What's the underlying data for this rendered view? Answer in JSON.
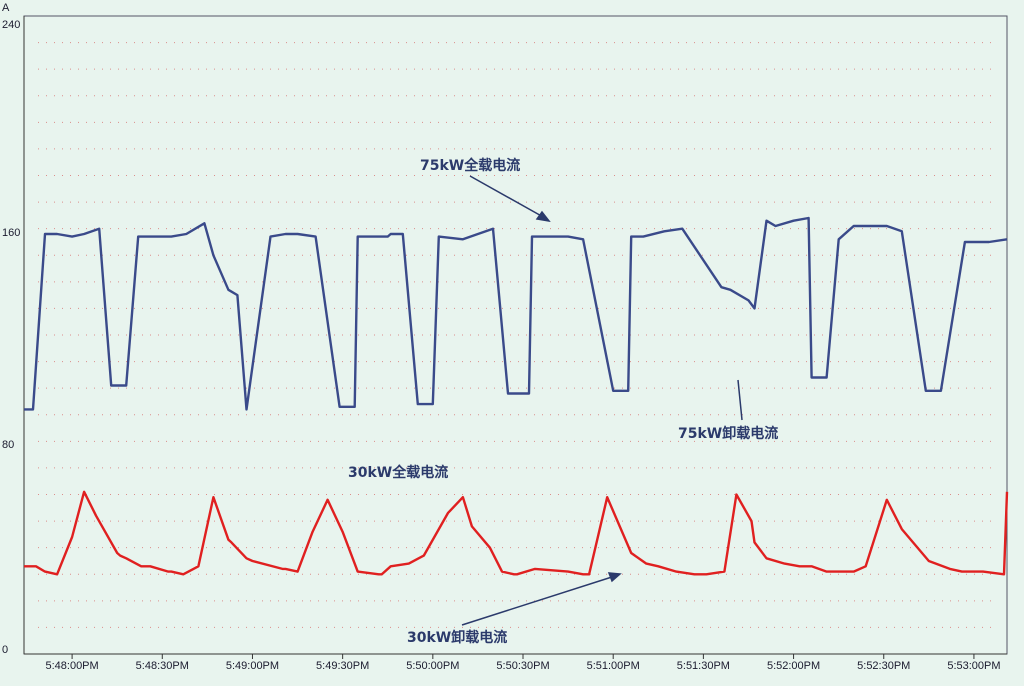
{
  "chart_data": {
    "type": "line",
    "ylabel": "A",
    "ylim": [
      0,
      240
    ],
    "y_ticks": [
      {
        "value": 240,
        "label": "240"
      },
      {
        "value": 160,
        "label": "160"
      },
      {
        "value": 80,
        "label": "80"
      },
      {
        "value": 0,
        "label": "0"
      }
    ],
    "x_ticks": [
      "5:48:00PM",
      "5:48:30PM",
      "5:49:00PM",
      "5:49:30PM",
      "5:50:00PM",
      "5:50:30PM",
      "5:51:00PM",
      "5:51:30PM",
      "5:52:00PM",
      "5:52:30PM",
      "5:53:00PM"
    ],
    "x_tick_seconds": [
      60,
      90,
      120,
      150,
      180,
      210,
      240,
      270,
      300,
      330,
      360
    ],
    "xlim_seconds": [
      44,
      371
    ],
    "grid": "dotted",
    "series": [
      {
        "name": "75kW全载电流",
        "color": "#3a4a8a",
        "x": [
          44,
          47,
          51,
          55,
          60,
          64,
          69,
          73,
          78,
          82,
          86,
          93,
          98,
          104,
          107,
          112,
          115,
          118,
          126,
          131,
          135,
          141,
          149,
          154,
          155,
          158,
          165,
          166,
          170,
          175,
          180,
          182,
          190,
          195,
          200,
          205,
          212,
          213,
          217,
          225,
          230,
          240,
          245,
          246,
          250,
          257,
          263,
          276,
          279,
          285,
          287,
          291,
          294,
          300,
          305,
          306,
          311,
          315,
          320,
          331,
          336,
          344,
          349,
          357,
          365,
          371
        ],
        "y": [
          92,
          92,
          158,
          158,
          157,
          158,
          160,
          101,
          101,
          157,
          157,
          157,
          158,
          162,
          150,
          137,
          135,
          92,
          157,
          158,
          158,
          157,
          93,
          93,
          157,
          157,
          157,
          158,
          158,
          94,
          94,
          157,
          156,
          158,
          160,
          98,
          98,
          157,
          157,
          157,
          156,
          99,
          99,
          157,
          157,
          159,
          160,
          138,
          137,
          133,
          130,
          163,
          161,
          163,
          164,
          104,
          104,
          156,
          161,
          161,
          159,
          99,
          99,
          155,
          155,
          156
        ]
      },
      {
        "name": "30kW卸载电流",
        "color": "#e02020",
        "x": [
          44,
          48,
          51,
          55,
          60,
          64,
          68,
          75,
          76,
          78,
          83,
          86,
          92,
          93,
          97,
          102,
          107,
          112,
          113,
          118,
          120,
          130,
          131,
          135,
          140,
          145,
          150,
          155,
          162,
          163,
          166,
          172,
          177,
          185,
          190,
          193,
          199,
          203,
          207,
          208,
          214,
          225,
          230,
          232,
          238,
          246,
          251,
          255,
          261,
          267,
          271,
          277,
          281,
          286,
          287,
          291,
          297,
          302,
          306,
          311,
          316,
          320,
          324,
          331,
          336,
          345,
          352,
          356,
          363,
          370,
          371
        ],
        "y": [
          33,
          33,
          31,
          30,
          44,
          61,
          52,
          38,
          37,
          36,
          33,
          33,
          31,
          31,
          30,
          33,
          59,
          43,
          42,
          36,
          35,
          32,
          32,
          31,
          46,
          58,
          46,
          31,
          30,
          30,
          33,
          34,
          37,
          53,
          59,
          48,
          40,
          31,
          30,
          30,
          32,
          31,
          30,
          30,
          59,
          38,
          34,
          33,
          31,
          30,
          30,
          31,
          60,
          50,
          42,
          36,
          34,
          33,
          33,
          31,
          31,
          31,
          33,
          58,
          47,
          35,
          32,
          31,
          31,
          30,
          61
        ]
      }
    ],
    "annotations": [
      {
        "text": "75kW全载电流"
      },
      {
        "text": "75kW卸载电流"
      },
      {
        "text": "30kW全载电流"
      },
      {
        "text": "30kW卸载电流"
      }
    ]
  }
}
